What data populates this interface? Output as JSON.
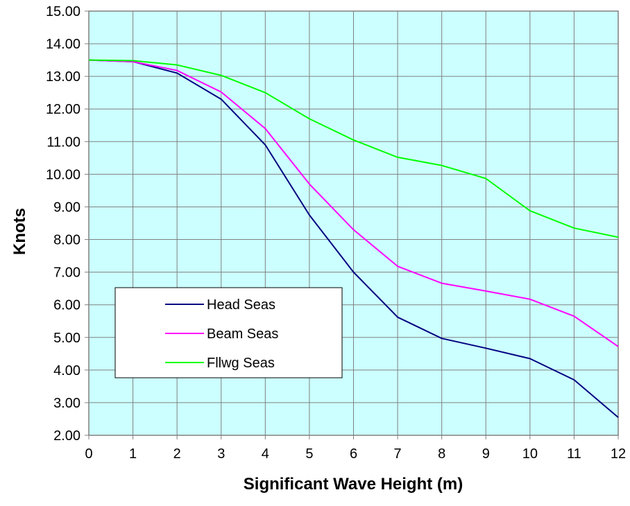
{
  "chart_data": {
    "type": "line",
    "title": "",
    "xlabel": "Significant Wave Height (m)",
    "ylabel": "Knots",
    "x": [
      0,
      1,
      2,
      3,
      4,
      5,
      6,
      7,
      8,
      9,
      10,
      11,
      12
    ],
    "x_tick_labels": [
      "0",
      "1",
      "2",
      "3",
      "4",
      "5",
      "6",
      "7",
      "8",
      "9",
      "10",
      "11",
      "12"
    ],
    "y_tick_labels": [
      "2.00",
      "3.00",
      "4.00",
      "5.00",
      "6.00",
      "7.00",
      "8.00",
      "9.00",
      "10.00",
      "11.00",
      "12.00",
      "13.00",
      "14.00",
      "15.00"
    ],
    "xlim": [
      0,
      12
    ],
    "ylim": [
      2,
      15
    ],
    "grid": true,
    "plot_background": "#ccffff",
    "legend_position": "lower-left",
    "series": [
      {
        "name": "Head Seas",
        "color": "#000080",
        "values": [
          13.5,
          13.45,
          13.1,
          12.3,
          10.9,
          8.75,
          7.0,
          5.62,
          4.97,
          4.67,
          4.35,
          3.7,
          2.55
        ]
      },
      {
        "name": "Beam Seas",
        "color": "#ff00ff",
        "values": [
          13.5,
          13.45,
          13.18,
          12.52,
          11.4,
          9.7,
          8.3,
          7.18,
          6.66,
          6.42,
          6.17,
          5.65,
          4.72
        ]
      },
      {
        "name": "Fllwg Seas",
        "color": "#00ff00",
        "values": [
          13.5,
          13.48,
          13.35,
          13.03,
          12.5,
          11.7,
          11.05,
          10.52,
          10.27,
          9.87,
          8.88,
          8.35,
          8.07
        ]
      }
    ]
  }
}
